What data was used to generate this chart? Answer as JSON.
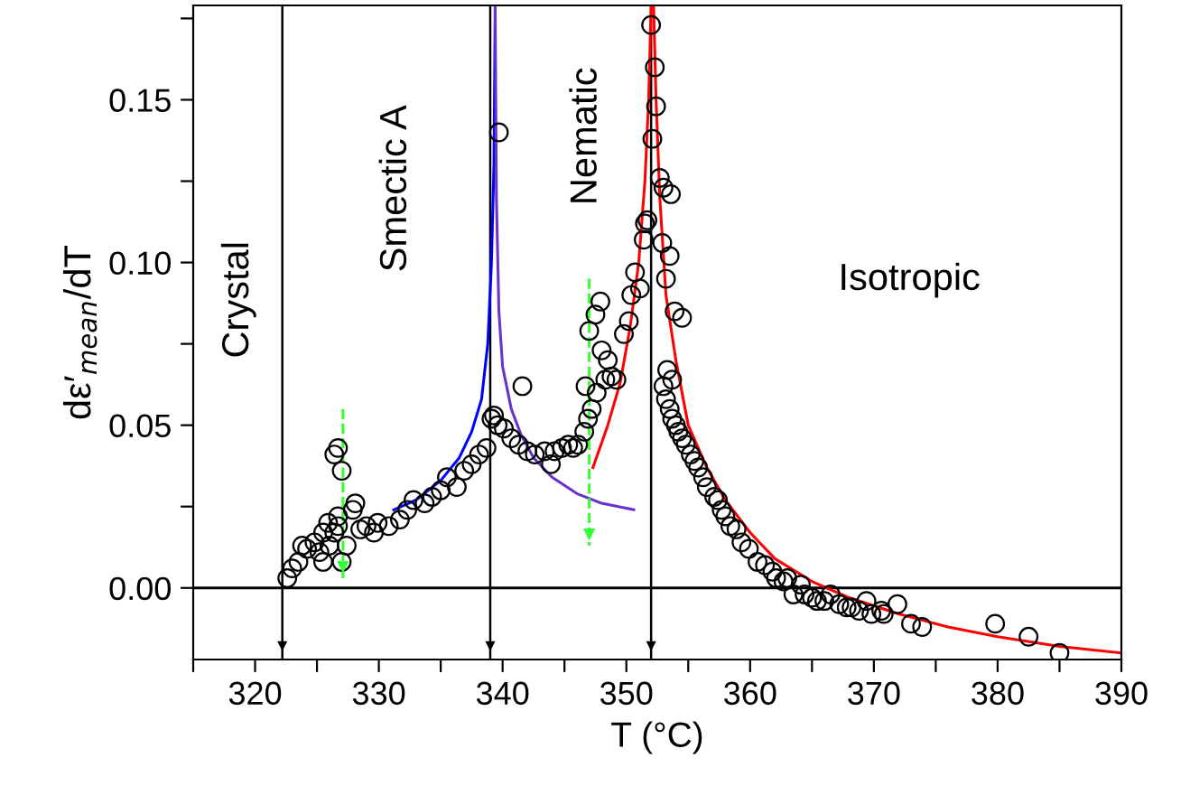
{
  "chart_data": {
    "type": "scatter",
    "xlabel": "T (°C)",
    "ylabel": "dε′$_{mean}$/dT",
    "xlim": [
      315,
      390
    ],
    "ylim": [
      -0.022,
      0.179
    ],
    "xticks": [
      {
        "value": 315,
        "label": null
      },
      320,
      {
        "value": 325,
        "label": null
      },
      330,
      {
        "value": 335,
        "label": null
      },
      340,
      {
        "value": 345,
        "label": null
      },
      350,
      {
        "value": 355,
        "label": null
      },
      360,
      {
        "value": 365,
        "label": null
      },
      370,
      {
        "value": 375,
        "label": null
      },
      380,
      {
        "value": 385,
        "label": null
      },
      390
    ],
    "yticks": [
      {
        "value": 0,
        "label": "0.00"
      },
      {
        "value": 0.025,
        "label": null
      },
      0.05,
      {
        "value": 0.075,
        "label": null
      },
      {
        "value": 0.1,
        "label": "0.10"
      },
      {
        "value": 0.125,
        "label": null
      },
      0.15,
      {
        "value": 0.175,
        "label": null
      }
    ],
    "grid": false,
    "annotations": [
      "Crystal",
      "Smectic A",
      "Nematic",
      "Isotropic"
    ],
    "ref_lines": [
      {
        "axis": "y",
        "value": 0,
        "color": "#000000",
        "line_style": "solid"
      },
      {
        "axis": "x",
        "value": 322.2,
        "color": "#000000",
        "line_style": "solid"
      },
      {
        "axis": "x",
        "value": 339.0,
        "color": "#000000",
        "line_style": "solid"
      },
      {
        "axis": "x",
        "value": 352.0,
        "color": "#000000",
        "line_style": "solid"
      }
    ],
    "series": [
      {
        "color": "#000000",
        "marker": "circle",
        "x": [
          322.6,
          323.0,
          323.5,
          323.8,
          324.2,
          324.8,
          325.2,
          325.5,
          326.0,
          326.4,
          326.7,
          327.0,
          327.4,
          326.4,
          326.7,
          327.0,
          325.9,
          325.5,
          326.7,
          327.9,
          328.1,
          328.5,
          329.0,
          329.6,
          329.9,
          330.8,
          331.7,
          332.3,
          332.8,
          333.7,
          334.3,
          335.0,
          335.5,
          336.3,
          336.9,
          337.5,
          338.1,
          338.7,
          339.1,
          339.3,
          339.6,
          339.7,
          340.1,
          340.7,
          341.3,
          341.6,
          342.0,
          342.6,
          343.4,
          343.9,
          344.2,
          344.8,
          345.3,
          345.7,
          346.1,
          346.6,
          346.9,
          347.2,
          346.7,
          347.6,
          348.3,
          348.5,
          348.0,
          347.0,
          347.5,
          347.9,
          348.8,
          349.2,
          349.8,
          350.2,
          350.4,
          350.7,
          351.1,
          351.4,
          351.5,
          351.7,
          352.1,
          352.0,
          352.3,
          352.4,
          352.7,
          353.0,
          352.9,
          353.5,
          353.6,
          353.2,
          353.9,
          354.5,
          353.3,
          353.7,
          353.0,
          353.2,
          353.5,
          353.7,
          354.0,
          354.2,
          354.5,
          354.8,
          355.2,
          355.5,
          355.8,
          356.2,
          356.5,
          357.1,
          357.4,
          357.7,
          358.0,
          358.4,
          358.9,
          359.3,
          359.9,
          360.6,
          361.2,
          361.8,
          362.1,
          362.7,
          363.0,
          363.5,
          364.1,
          364.4,
          365.0,
          365.4,
          366.0,
          366.5,
          367.2,
          367.8,
          368.2,
          368.8,
          369.4,
          369.8,
          370.6,
          370.8,
          371.9,
          373.0,
          373.9,
          379.8,
          382.5,
          385.0
        ],
        "values": [
          0.003,
          0.006,
          0.008,
          0.013,
          0.012,
          0.014,
          0.011,
          0.008,
          0.013,
          0.017,
          0.019,
          0.008,
          0.013,
          0.041,
          0.043,
          0.036,
          0.02,
          0.017,
          0.022,
          0.024,
          0.026,
          0.018,
          0.019,
          0.017,
          0.02,
          0.019,
          0.021,
          0.024,
          0.027,
          0.026,
          0.028,
          0.03,
          0.034,
          0.031,
          0.036,
          0.038,
          0.041,
          0.043,
          0.052,
          0.053,
          0.05,
          0.14,
          0.049,
          0.046,
          0.044,
          0.062,
          0.042,
          0.041,
          0.042,
          0.038,
          0.042,
          0.043,
          0.044,
          0.043,
          0.044,
          0.048,
          0.052,
          0.055,
          0.062,
          0.06,
          0.064,
          0.07,
          0.073,
          0.079,
          0.084,
          0.088,
          0.065,
          0.064,
          0.078,
          0.082,
          0.09,
          0.097,
          0.092,
          0.107,
          0.112,
          0.113,
          0.138,
          0.173,
          0.16,
          0.148,
          0.126,
          0.123,
          0.106,
          0.102,
          0.121,
          0.095,
          0.085,
          0.083,
          0.067,
          0.064,
          0.062,
          0.058,
          0.055,
          0.052,
          0.05,
          0.048,
          0.046,
          0.044,
          0.041,
          0.039,
          0.037,
          0.034,
          0.031,
          0.028,
          0.027,
          0.024,
          0.022,
          0.019,
          0.018,
          0.014,
          0.012,
          0.008,
          0.007,
          0.005,
          0.003,
          0.002,
          0.003,
          -0.002,
          0.001,
          -0.002,
          -0.003,
          -0.004,
          -0.004,
          -0.002,
          -0.005,
          -0.006,
          -0.006,
          -0.007,
          -0.004,
          -0.008,
          -0.007,
          -0.008,
          -0.005,
          -0.011,
          -0.012,
          -0.011,
          -0.015,
          -0.02
        ]
      },
      {
        "type": "line",
        "color": "#0000ff",
        "marker": "none",
        "line_style": "solid",
        "x": [
          331.2,
          333,
          335,
          336.5,
          337.5,
          338.3,
          338.8,
          339.1,
          339.3,
          339.4
        ],
        "values": [
          0.024,
          0.027,
          0.033,
          0.04,
          0.048,
          0.058,
          0.075,
          0.1,
          0.13,
          0.179
        ]
      },
      {
        "type": "line",
        "color": "#6633cc",
        "marker": "none",
        "line_style": "solid",
        "x": [
          339.4,
          339.5,
          339.7,
          340.0,
          340.7,
          341.5,
          342.5,
          344,
          346,
          348,
          350.6
        ],
        "values": [
          0.179,
          0.12,
          0.085,
          0.068,
          0.055,
          0.047,
          0.04,
          0.034,
          0.029,
          0.026,
          0.024
        ]
      },
      {
        "type": "line",
        "color": "#ff0000",
        "marker": "none",
        "line_style": "solid",
        "x": [
          347.3,
          348.5,
          349.5,
          350.3,
          351.0,
          351.5,
          351.8,
          352.0
        ],
        "values": [
          0.037,
          0.05,
          0.063,
          0.08,
          0.1,
          0.125,
          0.15,
          0.179
        ]
      },
      {
        "type": "line",
        "color": "#ff0000",
        "marker": "none",
        "line_style": "solid",
        "x": [
          352.2,
          352.4,
          352.7,
          353.2,
          354,
          355,
          356.5,
          358,
          360,
          362,
          365,
          368,
          372,
          376,
          380,
          385,
          390
        ],
        "values": [
          0.179,
          0.15,
          0.12,
          0.09,
          0.07,
          0.05,
          0.037,
          0.027,
          0.017,
          0.009,
          0.002,
          -0.003,
          -0.008,
          -0.012,
          -0.015,
          -0.018,
          -0.02
        ]
      },
      {
        "type": "line",
        "color": "#33ff33",
        "marker": "none",
        "line_style": "dashed",
        "x": [
          327.1,
          327.1
        ],
        "values": [
          0.055,
          0.003
        ]
      },
      {
        "type": "line",
        "color": "#33ff33",
        "marker": "none",
        "line_style": "dashed",
        "x": [
          347.0,
          347.0
        ],
        "values": [
          0.095,
          0.013
        ]
      }
    ]
  }
}
